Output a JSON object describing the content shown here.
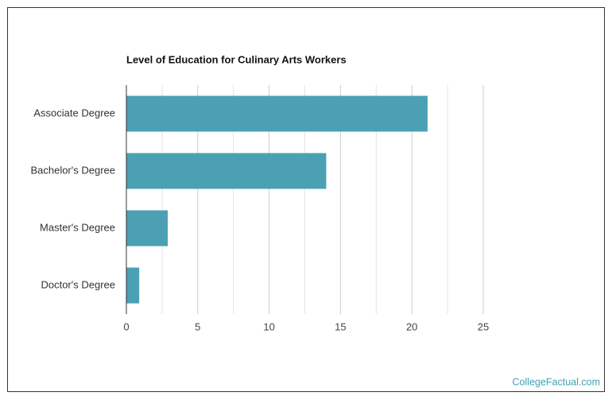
{
  "chart_data": {
    "type": "bar",
    "orientation": "horizontal",
    "title": "Level of Education for Culinary Arts Workers",
    "categories": [
      "Associate Degree",
      "Bachelor's Degree",
      "Master's Degree",
      "Doctor's Degree"
    ],
    "values": [
      21.1,
      14.0,
      2.9,
      0.9
    ],
    "color": "#4ba1b3",
    "xlim": [
      0,
      25
    ],
    "xticks": [
      0,
      5,
      10,
      15,
      20,
      25
    ],
    "x_minor_ticks": [
      2.5,
      7.5,
      12.5,
      17.5,
      22.5
    ],
    "grid": true,
    "source": "CollegeFactual.com"
  }
}
